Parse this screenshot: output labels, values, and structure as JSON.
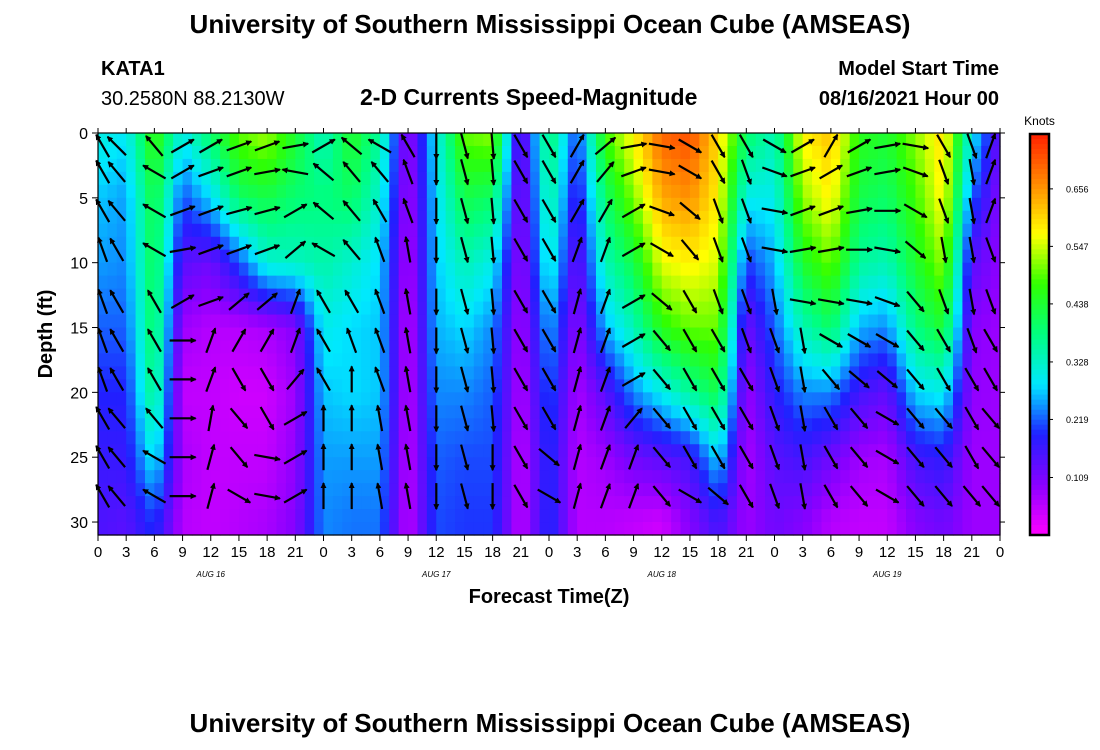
{
  "header": {
    "title": "University of Southern Mississippi Ocean Cube (AMSEAS)",
    "station_id": "KATA1",
    "station_coords": "30.2580N  88.2130W",
    "start_label": "Model Start Time",
    "start_value": "08/16/2021 Hour 00"
  },
  "footer": {
    "title": "University of Southern Mississippi Ocean Cube (AMSEAS)"
  },
  "chart_data": {
    "type": "heatmap",
    "title": "2-D Currents Speed-Magnitude",
    "xlabel": "Forecast Time(Z)",
    "ylabel": "Depth (ft)",
    "xlim": [
      0,
      96
    ],
    "ylim": [
      0,
      31
    ],
    "y_inverted": true,
    "x_ticks": [
      0,
      3,
      6,
      9,
      12,
      15,
      18,
      21,
      24,
      27,
      30,
      33,
      36,
      39,
      42,
      45,
      48,
      51,
      54,
      57,
      60,
      63,
      66,
      69,
      72,
      75,
      78,
      81,
      84,
      87,
      90,
      93,
      96
    ],
    "x_tick_labels": [
      "0",
      "3",
      "6",
      "9",
      "12",
      "15",
      "18",
      "21",
      "0",
      "3",
      "6",
      "9",
      "12",
      "15",
      "18",
      "21",
      "0",
      "3",
      "6",
      "9",
      "12",
      "15",
      "18",
      "21",
      "0",
      "3",
      "6",
      "9",
      "12",
      "15",
      "18",
      "21",
      "0"
    ],
    "y_ticks": [
      0,
      5,
      10,
      15,
      20,
      25,
      30
    ],
    "y_tick_labels": [
      "0",
      "5",
      "10",
      "15",
      "20",
      "25",
      "30"
    ],
    "day_labels": [
      {
        "hour": 12,
        "label": "AUG 16"
      },
      {
        "hour": 36,
        "label": "AUG 17"
      },
      {
        "hour": 60,
        "label": "AUG 18"
      },
      {
        "hour": 84,
        "label": "AUG 19"
      }
    ],
    "colorbar": {
      "unit": "Knots",
      "range": [
        0.0,
        0.76
      ],
      "ticks": [
        0.109,
        0.219,
        0.328,
        0.438,
        0.547,
        0.656
      ],
      "tick_labels": [
        "0.109",
        "0.219",
        "0.328",
        "0.438",
        "0.547",
        "0.656"
      ],
      "colors": [
        "#ff00ff",
        "#8a00ff",
        "#2020ff",
        "#00e8ff",
        "#00ff80",
        "#30ff00",
        "#ffff00",
        "#ff8a00",
        "#ff2000"
      ]
    },
    "speed_hour_columns": [
      0,
      3,
      6,
      9,
      12,
      15,
      18,
      21,
      24,
      27,
      30,
      33,
      36,
      39,
      42,
      45,
      48,
      51,
      54,
      57,
      60,
      63,
      66,
      69,
      72,
      75,
      78,
      81,
      84,
      87,
      90,
      93,
      96
    ],
    "speed_depth_rows": [
      0,
      5,
      10,
      15,
      20,
      25,
      30
    ],
    "speed_grid_knots": [
      [
        0.31,
        0.27,
        0.25,
        0.22,
        0.19,
        0.17,
        0.15
      ],
      [
        0.29,
        0.25,
        0.24,
        0.22,
        0.19,
        0.17,
        0.14
      ],
      [
        0.48,
        0.43,
        0.42,
        0.41,
        0.38,
        0.3,
        0.2
      ],
      [
        0.3,
        0.21,
        0.14,
        0.08,
        0.05,
        0.07,
        0.06
      ],
      [
        0.4,
        0.28,
        0.12,
        0.06,
        0.05,
        0.05,
        0.05
      ],
      [
        0.5,
        0.4,
        0.21,
        0.06,
        0.04,
        0.05,
        0.06
      ],
      [
        0.53,
        0.42,
        0.32,
        0.07,
        0.04,
        0.05,
        0.07
      ],
      [
        0.44,
        0.39,
        0.33,
        0.1,
        0.08,
        0.09,
        0.1
      ],
      [
        0.33,
        0.38,
        0.35,
        0.3,
        0.27,
        0.25,
        0.24
      ],
      [
        0.45,
        0.4,
        0.32,
        0.28,
        0.28,
        0.25,
        0.23
      ],
      [
        0.36,
        0.32,
        0.28,
        0.27,
        0.27,
        0.25,
        0.23
      ],
      [
        0.08,
        0.07,
        0.06,
        0.05,
        0.05,
        0.05,
        0.05
      ],
      [
        0.3,
        0.28,
        0.27,
        0.26,
        0.24,
        0.22,
        0.21
      ],
      [
        0.5,
        0.42,
        0.34,
        0.28,
        0.24,
        0.21,
        0.2
      ],
      [
        0.52,
        0.4,
        0.3,
        0.24,
        0.22,
        0.21,
        0.2
      ],
      [
        0.1,
        0.09,
        0.08,
        0.07,
        0.06,
        0.05,
        0.05
      ],
      [
        0.4,
        0.36,
        0.32,
        0.26,
        0.22,
        0.2,
        0.2
      ],
      [
        0.2,
        0.16,
        0.12,
        0.09,
        0.07,
        0.06,
        0.06
      ],
      [
        0.48,
        0.4,
        0.34,
        0.26,
        0.14,
        0.08,
        0.06
      ],
      [
        0.58,
        0.51,
        0.42,
        0.34,
        0.24,
        0.12,
        0.05
      ],
      [
        0.7,
        0.64,
        0.56,
        0.46,
        0.3,
        0.14,
        0.04
      ],
      [
        0.72,
        0.66,
        0.58,
        0.5,
        0.36,
        0.16,
        0.1
      ],
      [
        0.6,
        0.58,
        0.55,
        0.5,
        0.42,
        0.28,
        0.16
      ],
      [
        0.4,
        0.3,
        0.2,
        0.12,
        0.08,
        0.07,
        0.08
      ],
      [
        0.34,
        0.3,
        0.26,
        0.22,
        0.18,
        0.14,
        0.12
      ],
      [
        0.58,
        0.52,
        0.44,
        0.34,
        0.24,
        0.16,
        0.1
      ],
      [
        0.62,
        0.58,
        0.5,
        0.4,
        0.24,
        0.12,
        0.06
      ],
      [
        0.46,
        0.42,
        0.36,
        0.26,
        0.16,
        0.08,
        0.05
      ],
      [
        0.44,
        0.4,
        0.34,
        0.24,
        0.13,
        0.07,
        0.05
      ],
      [
        0.52,
        0.48,
        0.44,
        0.38,
        0.28,
        0.16,
        0.1
      ],
      [
        0.6,
        0.58,
        0.52,
        0.44,
        0.3,
        0.18,
        0.12
      ],
      [
        0.3,
        0.22,
        0.14,
        0.1,
        0.09,
        0.08,
        0.08
      ],
      [
        0.12,
        0.1,
        0.09,
        0.08,
        0.08,
        0.08,
        0.08
      ]
    ],
    "arrow_hours": [
      0.5,
      2,
      6,
      9,
      12,
      15,
      18,
      21,
      24,
      27,
      30,
      33,
      36,
      39,
      42,
      45,
      48,
      51,
      54,
      57,
      60,
      63,
      66,
      69,
      72,
      75,
      78,
      81,
      84,
      87,
      90,
      93,
      95
    ],
    "arrow_depths": [
      1,
      3,
      6,
      9,
      13,
      16,
      19,
      22,
      25,
      28
    ],
    "arrow_direction_deg": [
      [
        330,
        330,
        330,
        340,
        340,
        340,
        340,
        330,
        330,
        330
      ],
      [
        315,
        320,
        320,
        330,
        330,
        330,
        330,
        320,
        320,
        320
      ],
      [
        320,
        300,
        300,
        300,
        330,
        330,
        330,
        320,
        300,
        300
      ],
      [
        60,
        60,
        70,
        80,
        60,
        90,
        90,
        90,
        90,
        90
      ],
      [
        60,
        70,
        70,
        70,
        70,
        20,
        20,
        10,
        15,
        15
      ],
      [
        70,
        70,
        75,
        70,
        50,
        30,
        150,
        140,
        140,
        120
      ],
      [
        70,
        80,
        75,
        70,
        50,
        30,
        150,
        150,
        100,
        100
      ],
      [
        80,
        280,
        60,
        50,
        20,
        20,
        40,
        60,
        60,
        60
      ],
      [
        60,
        310,
        310,
        300,
        330,
        330,
        330,
        0,
        0,
        0
      ],
      [
        310,
        320,
        320,
        320,
        330,
        340,
        0,
        0,
        0,
        0
      ],
      [
        300,
        320,
        330,
        340,
        340,
        340,
        340,
        350,
        350,
        350
      ],
      [
        330,
        340,
        340,
        350,
        350,
        350,
        350,
        350,
        350,
        350
      ],
      [
        180,
        180,
        180,
        180,
        180,
        180,
        180,
        180,
        180,
        180
      ],
      [
        165,
        165,
        165,
        165,
        165,
        165,
        165,
        165,
        165,
        165
      ],
      [
        175,
        175,
        175,
        175,
        175,
        175,
        175,
        175,
        180,
        180
      ],
      [
        150,
        150,
        150,
        150,
        150,
        150,
        150,
        150,
        150,
        150
      ],
      [
        150,
        150,
        150,
        150,
        150,
        150,
        150,
        150,
        130,
        120
      ],
      [
        30,
        30,
        30,
        20,
        15,
        15,
        15,
        15,
        15,
        15
      ],
      [
        50,
        40,
        30,
        20,
        20,
        20,
        20,
        20,
        20,
        20
      ],
      [
        80,
        70,
        60,
        60,
        60,
        60,
        60,
        40,
        20,
        20
      ],
      [
        100,
        100,
        110,
        120,
        130,
        140,
        140,
        140,
        140,
        140
      ],
      [
        120,
        120,
        130,
        140,
        150,
        150,
        150,
        150,
        150,
        120
      ],
      [
        150,
        150,
        160,
        160,
        160,
        150,
        150,
        150,
        150,
        130
      ],
      [
        150,
        160,
        160,
        160,
        160,
        160,
        150,
        150,
        150,
        150
      ],
      [
        120,
        110,
        100,
        100,
        170,
        160,
        160,
        160,
        160,
        160
      ],
      [
        60,
        70,
        70,
        80,
        100,
        170,
        170,
        170,
        170,
        170
      ],
      [
        30,
        60,
        70,
        80,
        100,
        120,
        140,
        150,
        150,
        150
      ],
      [
        60,
        70,
        80,
        90,
        100,
        120,
        130,
        140,
        140,
        140
      ],
      [
        80,
        80,
        90,
        100,
        110,
        120,
        130,
        120,
        120,
        120
      ],
      [
        100,
        110,
        120,
        130,
        140,
        140,
        140,
        140,
        140,
        140
      ],
      [
        150,
        160,
        160,
        170,
        160,
        150,
        150,
        140,
        140,
        140
      ],
      [
        160,
        170,
        170,
        170,
        170,
        160,
        150,
        150,
        150,
        140
      ],
      [
        20,
        20,
        20,
        160,
        160,
        150,
        150,
        140,
        140,
        140
      ]
    ]
  }
}
